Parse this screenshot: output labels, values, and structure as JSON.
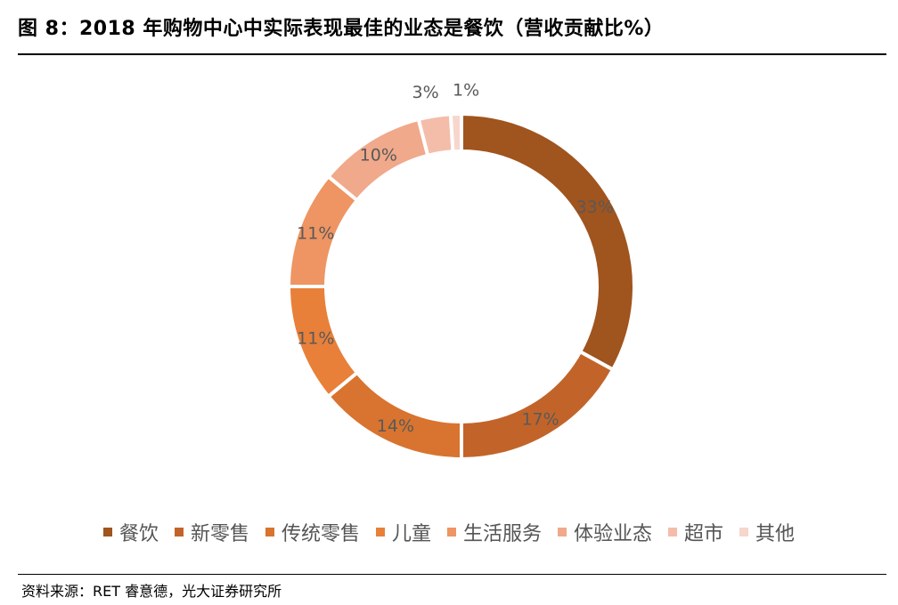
{
  "title": "图 8：2018 年购物中心中实际表现最佳的业态是餐饮（营收贡献比%）",
  "source": "资料来源：RET 睿意德，光大证券研究所",
  "chart_data": {
    "type": "pie",
    "style": "donut",
    "categories": [
      "餐饮",
      "新零售",
      "传统零售",
      "儿童",
      "生活服务",
      "体验业态",
      "超市",
      "其他"
    ],
    "values": [
      33,
      17,
      14,
      11,
      11,
      10,
      3,
      1
    ],
    "labels": [
      "33%",
      "17%",
      "14%",
      "11%",
      "11%",
      "10%",
      "3%",
      "1%"
    ],
    "colors": [
      "#A0541E",
      "#C2642A",
      "#D8742F",
      "#E8803A",
      "#EE9563",
      "#F0A98A",
      "#F4BDAA",
      "#F7D6CC"
    ],
    "label_color": "#595959",
    "legend_position": "bottom"
  }
}
